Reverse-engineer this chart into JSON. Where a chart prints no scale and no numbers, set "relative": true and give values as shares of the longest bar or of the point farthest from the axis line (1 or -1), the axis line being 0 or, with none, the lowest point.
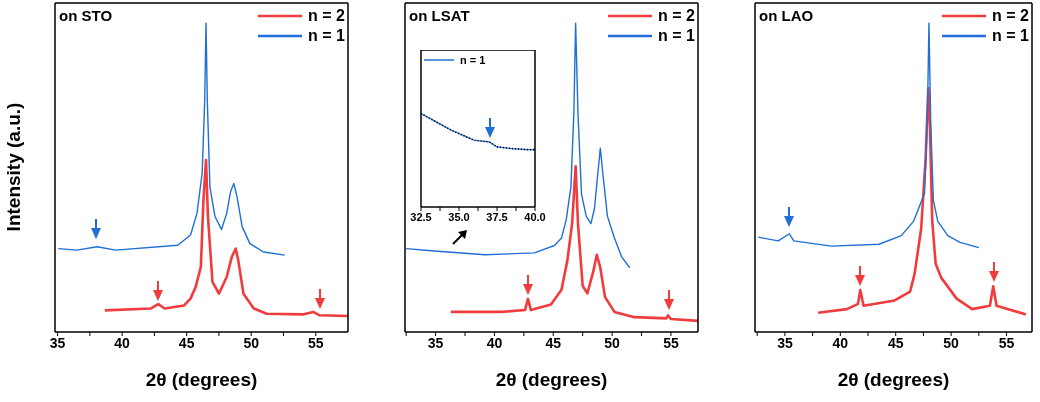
{
  "chart_data": [
    {
      "type": "line",
      "title": "on STO",
      "xlabel": "2θ (degrees)",
      "ylabel": "Intensity (a.u.)",
      "relative": true,
      "legend": "top right",
      "xlim": [
        34.8,
        57.5
      ],
      "xticks": [
        35,
        {
          "value": 37.5,
          "label": null
        },
        40,
        {
          "value": 42.5,
          "label": null
        },
        45,
        {
          "value": 47.5,
          "label": null
        },
        50,
        {
          "value": 52.5,
          "label": null
        },
        55
      ],
      "series": [
        {
          "name": "n = 2",
          "color": "#f03c3c",
          "x": [
            38.66,
            42.2,
            42.8,
            43.3,
            44.8,
            45.3,
            45.7,
            46.1,
            46.3,
            46.5,
            46.65,
            47.0,
            47.5,
            48.1,
            48.5,
            48.8,
            49.0,
            49.4,
            50.2,
            51.2,
            54.0,
            54.8,
            55.3,
            57.5
          ],
          "values": [
            0.07,
            0.076,
            0.09,
            0.076,
            0.086,
            0.108,
            0.146,
            0.211,
            0.427,
            0.557,
            0.373,
            0.162,
            0.124,
            0.178,
            0.243,
            0.27,
            0.232,
            0.124,
            0.076,
            0.059,
            0.057,
            0.065,
            0.054,
            0.052
          ]
        },
        {
          "name": "n = 1",
          "color": "#1f6fd6",
          "x": [
            35.06,
            36.5,
            38.06,
            39.5,
            44.3,
            45.3,
            45.8,
            46.2,
            46.4,
            46.5,
            46.6,
            46.8,
            47.2,
            47.7,
            48.1,
            48.4,
            48.65,
            48.9,
            49.3,
            49.9,
            50.96,
            52.6
          ],
          "values": [
            0.27,
            0.265,
            0.276,
            0.265,
            0.281,
            0.314,
            0.384,
            0.514,
            0.751,
            1.0,
            0.751,
            0.47,
            0.373,
            0.332,
            0.384,
            0.454,
            0.481,
            0.438,
            0.341,
            0.286,
            0.259,
            0.249
          ]
        }
      ]
    },
    {
      "type": "line",
      "title": "on LSAT",
      "xlabel": "2θ (degrees)",
      "relative": true,
      "legend": "top right",
      "xlim": [
        32.4,
        57.3
      ],
      "xticks": [
        {
          "value": 32.5,
          "label": null
        },
        35,
        {
          "value": 37.5,
          "label": null
        },
        40,
        {
          "value": 42.5,
          "label": null
        },
        45,
        {
          "value": 47.5,
          "label": null
        },
        50,
        {
          "value": 52.5,
          "label": null
        },
        55
      ],
      "series": [
        {
          "name": "n = 2",
          "color": "#f03c3c",
          "x": [
            36.3,
            40.6,
            42.6,
            42.85,
            43.1,
            44.8,
            45.7,
            46.2,
            46.6,
            46.9,
            47.1,
            47.5,
            47.9,
            48.4,
            48.7,
            49.0,
            49.4,
            50.2,
            51.9,
            54.6,
            54.75,
            55.0,
            57.3
          ],
          "values": [
            0.065,
            0.065,
            0.071,
            0.107,
            0.071,
            0.089,
            0.137,
            0.232,
            0.351,
            0.536,
            0.351,
            0.149,
            0.125,
            0.196,
            0.25,
            0.208,
            0.113,
            0.065,
            0.048,
            0.044,
            0.054,
            0.042,
            0.036
          ]
        },
        {
          "name": "n = 1",
          "color": "#1f6fd6",
          "x": [
            32.5,
            34.9,
            39.2,
            43.4,
            45.1,
            45.7,
            46.1,
            46.5,
            46.75,
            46.9,
            47.1,
            47.4,
            47.8,
            48.2,
            48.5,
            48.8,
            49.0,
            49.2,
            49.6,
            50.2,
            50.8,
            51.5
          ],
          "values": [
            0.27,
            0.262,
            0.25,
            0.256,
            0.28,
            0.304,
            0.363,
            0.47,
            0.708,
            1.0,
            0.708,
            0.446,
            0.375,
            0.351,
            0.399,
            0.518,
            0.595,
            0.518,
            0.375,
            0.304,
            0.244,
            0.208
          ]
        }
      ]
    },
    {
      "type": "line",
      "relative": true,
      "legend": "top left",
      "xlim": [
        32.5,
        40
      ],
      "xticks": [
        32.5,
        {
          "value": 33.75,
          "label": null
        },
        "35.0",
        {
          "value": 36.25,
          "label": null
        },
        37.5,
        {
          "value": 38.75,
          "label": null
        },
        "40.0"
      ],
      "series": [
        {
          "name": "n = 1",
          "color": "#1f6fd6",
          "x": [
            32.5,
            33.5,
            34.5,
            35.5,
            36,
            37,
            37.5,
            38.5,
            39.5,
            40
          ],
          "values": [
            1,
            0.911,
            0.821,
            0.75,
            0.714,
            0.696,
            0.643,
            0.625,
            0.614,
            0.614
          ]
        },
        {
          "color": "#000000",
          "line_style": "dotted",
          "x": [
            32.5,
            33.5,
            34.5,
            35.5,
            36,
            37,
            37.5,
            38.5,
            39.5,
            40
          ],
          "values": [
            1,
            0.911,
            0.821,
            0.75,
            0.714,
            0.696,
            0.643,
            0.625,
            0.614,
            0.614
          ]
        }
      ]
    },
    {
      "type": "line",
      "title": "on LAO",
      "xlabel": "2θ (degrees)",
      "relative": true,
      "legend": "top right",
      "xlim": [
        32.3,
        57.3
      ],
      "xticks": [
        {
          "value": 32.5,
          "label": null
        },
        35,
        {
          "value": 37.5,
          "label": null
        },
        40,
        {
          "value": 42.5,
          "label": null
        },
        45,
        {
          "value": 47.5,
          "label": null
        },
        50,
        {
          "value": 52.5,
          "label": null
        },
        55
      ],
      "series": [
        {
          "name": "n = 2",
          "color": "#f03c3c",
          "x": [
            38.0,
            40.6,
            41.6,
            41.8,
            42.1,
            44.9,
            46.3,
            46.7,
            47.3,
            47.7,
            47.94,
            48.08,
            48.3,
            48.6,
            49.1,
            50.5,
            51.9,
            53.5,
            53.8,
            54.1,
            56.75
          ],
          "values": [
            0.0625,
            0.074,
            0.091,
            0.136,
            0.085,
            0.102,
            0.131,
            0.1875,
            0.335,
            0.5625,
            0.79,
            0.676,
            0.358,
            0.222,
            0.176,
            0.108,
            0.074,
            0.085,
            0.148,
            0.085,
            0.057
          ]
        },
        {
          "name": "n = 1",
          "color": "#1f6fd6",
          "x": [
            32.6,
            34.4,
            35.4,
            35.8,
            39.2,
            43.5,
            45.5,
            46.6,
            47.1,
            47.6,
            47.85,
            48.0,
            48.16,
            48.4,
            48.8,
            49.7,
            50.8,
            52.5
          ],
          "values": [
            0.307,
            0.295,
            0.318,
            0.295,
            0.278,
            0.284,
            0.312,
            0.358,
            0.403,
            0.449,
            0.676,
            1.0,
            0.676,
            0.426,
            0.358,
            0.312,
            0.29,
            0.273
          ]
        }
      ]
    }
  ]
}
